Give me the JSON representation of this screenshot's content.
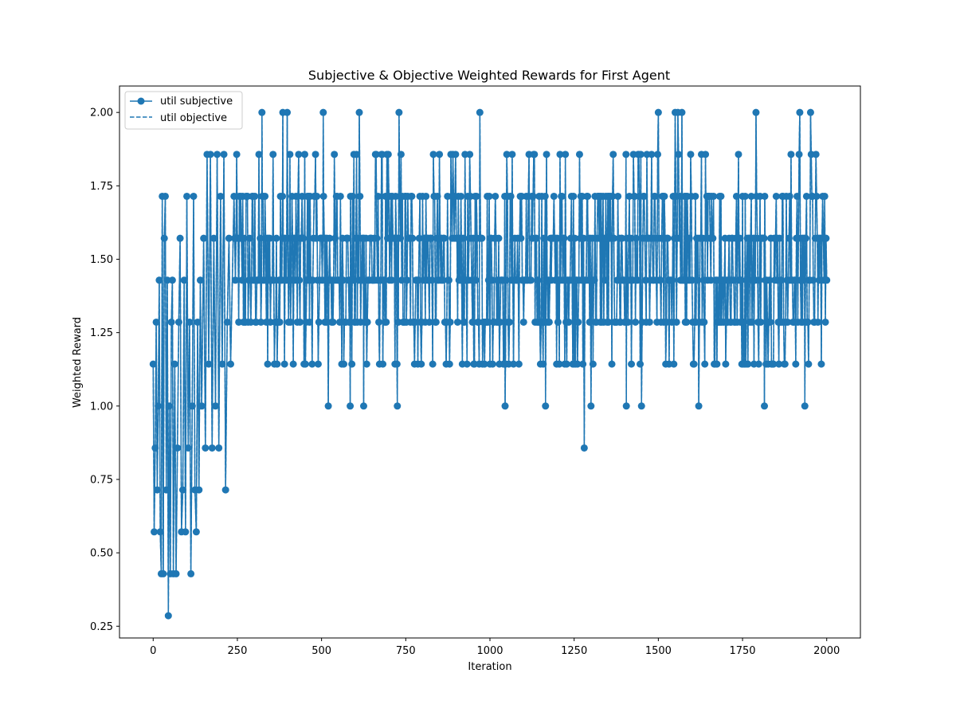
{
  "chart_data": {
    "type": "line",
    "title": "Subjective & Objective Weighted Rewards for First Agent",
    "xlabel": "Iteration",
    "ylabel": "Weighted Reward",
    "xlim": [
      -100,
      2100
    ],
    "ylim": [
      0.21,
      2.09
    ],
    "x_ticks": [
      0,
      250,
      500,
      750,
      1000,
      1250,
      1500,
      1750,
      2000
    ],
    "x_tick_labels": [
      "0",
      "250",
      "500",
      "750",
      "1000",
      "1250",
      "1500",
      "1750",
      "2000"
    ],
    "y_ticks": [
      0.25,
      0.5,
      0.75,
      1.0,
      1.25,
      1.5,
      1.75,
      2.0
    ],
    "y_tick_labels": [
      "0.25",
      "0.50",
      "0.75",
      "1.00",
      "1.25",
      "1.50",
      "1.75",
      "2.00"
    ],
    "grid": false,
    "legend_position": "top-left",
    "series": [
      {
        "name": "util subjective",
        "style": "solid line with circle markers",
        "color": "#1f77b4",
        "x_range": [
          0,
          2000
        ],
        "early_points": [
          {
            "x": 0,
            "y": 1.1429
          },
          {
            "x": 3,
            "y": 0.5714
          },
          {
            "x": 6,
            "y": 0.8571
          },
          {
            "x": 9,
            "y": 1.2857
          },
          {
            "x": 12,
            "y": 0.7143
          },
          {
            "x": 15,
            "y": 1.0
          },
          {
            "x": 18,
            "y": 1.4286
          },
          {
            "x": 21,
            "y": 0.5714
          },
          {
            "x": 24,
            "y": 0.4286
          },
          {
            "x": 27,
            "y": 1.7143
          },
          {
            "x": 30,
            "y": 0.4286
          },
          {
            "x": 33,
            "y": 1.5714
          },
          {
            "x": 36,
            "y": 1.7143
          },
          {
            "x": 39,
            "y": 0.7143
          },
          {
            "x": 42,
            "y": 1.4286
          },
          {
            "x": 45,
            "y": 0.2857
          },
          {
            "x": 48,
            "y": 1.0
          },
          {
            "x": 51,
            "y": 0.4286
          },
          {
            "x": 54,
            "y": 1.2857
          },
          {
            "x": 57,
            "y": 1.4286
          },
          {
            "x": 60,
            "y": 0.4286
          },
          {
            "x": 64,
            "y": 1.1429
          },
          {
            "x": 68,
            "y": 0.4286
          },
          {
            "x": 72,
            "y": 0.8571
          },
          {
            "x": 76,
            "y": 1.2857
          },
          {
            "x": 80,
            "y": 1.5714
          },
          {
            "x": 84,
            "y": 0.5714
          },
          {
            "x": 88,
            "y": 0.7143
          },
          {
            "x": 92,
            "y": 1.4286
          },
          {
            "x": 96,
            "y": 0.5714
          },
          {
            "x": 100,
            "y": 1.7143
          },
          {
            "x": 104,
            "y": 0.8571
          },
          {
            "x": 108,
            "y": 1.2857
          },
          {
            "x": 112,
            "y": 0.4286
          },
          {
            "x": 116,
            "y": 1.0
          },
          {
            "x": 120,
            "y": 1.7143
          },
          {
            "x": 124,
            "y": 0.7143
          },
          {
            "x": 128,
            "y": 0.5714
          },
          {
            "x": 132,
            "y": 1.2857
          },
          {
            "x": 136,
            "y": 0.7143
          },
          {
            "x": 140,
            "y": 1.4286
          },
          {
            "x": 144,
            "y": 1.0
          },
          {
            "x": 150,
            "y": 1.5714
          },
          {
            "x": 155,
            "y": 0.8571
          },
          {
            "x": 160,
            "y": 1.8571
          },
          {
            "x": 165,
            "y": 1.1429
          },
          {
            "x": 170,
            "y": 1.8571
          },
          {
            "x": 175,
            "y": 0.8571
          },
          {
            "x": 180,
            "y": 1.5714
          },
          {
            "x": 185,
            "y": 1.0
          },
          {
            "x": 190,
            "y": 1.8571
          },
          {
            "x": 195,
            "y": 0.8571
          },
          {
            "x": 200,
            "y": 1.7143
          },
          {
            "x": 205,
            "y": 1.1429
          },
          {
            "x": 210,
            "y": 1.8571
          },
          {
            "x": 215,
            "y": 0.7143
          },
          {
            "x": 220,
            "y": 1.2857
          },
          {
            "x": 225,
            "y": 1.5714
          },
          {
            "x": 230,
            "y": 1.1429
          },
          {
            "x": 240,
            "y": 1.7143
          }
        ],
        "notable_points": [
          {
            "x": 323,
            "y": 2.0
          },
          {
            "x": 385,
            "y": 2.0
          },
          {
            "x": 398,
            "y": 2.0
          },
          {
            "x": 505,
            "y": 2.0
          },
          {
            "x": 612,
            "y": 2.0
          },
          {
            "x": 730,
            "y": 2.0
          },
          {
            "x": 970,
            "y": 2.0
          },
          {
            "x": 1500,
            "y": 2.0
          },
          {
            "x": 1550,
            "y": 2.0
          },
          {
            "x": 1558,
            "y": 2.0
          },
          {
            "x": 1570,
            "y": 2.0
          },
          {
            "x": 1790,
            "y": 2.0
          },
          {
            "x": 1920,
            "y": 2.0
          },
          {
            "x": 1952,
            "y": 2.0
          },
          {
            "x": 1280,
            "y": 0.8571
          },
          {
            "x": 1300,
            "y": 1.0
          },
          {
            "x": 1620,
            "y": 1.0
          },
          {
            "x": 1815,
            "y": 1.0
          },
          {
            "x": 1935,
            "y": 1.0
          },
          {
            "x": 520,
            "y": 1.0
          },
          {
            "x": 585,
            "y": 1.0
          },
          {
            "x": 625,
            "y": 1.0
          },
          {
            "x": 725,
            "y": 1.0
          },
          {
            "x": 1045,
            "y": 1.0
          },
          {
            "x": 1165,
            "y": 1.0
          },
          {
            "x": 1405,
            "y": 1.0
          },
          {
            "x": 1450,
            "y": 1.0
          },
          {
            "x": 2000,
            "y": 1.4286
          },
          {
            "x": 1998,
            "y": 1.5714
          }
        ],
        "steady_state_levels": [
          1.1429,
          1.2857,
          1.4286,
          1.5714,
          1.7143,
          1.8571
        ],
        "steady_state_start": 240
      },
      {
        "name": "util objective",
        "style": "dashed line",
        "color": "#1f77b4",
        "note": "overlaps util subjective"
      }
    ]
  }
}
